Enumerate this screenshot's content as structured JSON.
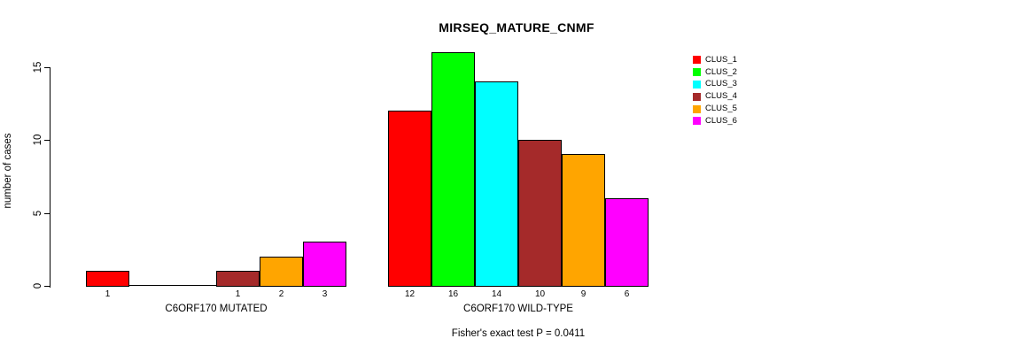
{
  "chart_data": {
    "type": "bar",
    "title": "MIRSEQ_MATURE_CNMF",
    "ylabel": "number of cases",
    "ylim": [
      0,
      16
    ],
    "yticks": [
      0,
      5,
      10,
      15
    ],
    "grid": false,
    "legend_position": "top-right",
    "series_names": [
      "CLUS_1",
      "CLUS_2",
      "CLUS_3",
      "CLUS_4",
      "CLUS_5",
      "CLUS_6"
    ],
    "series_colors": [
      "#ff0000",
      "#00ff00",
      "#00ffff",
      "#a52a2a",
      "#ffa500",
      "#ff00ff"
    ],
    "groups": [
      {
        "label": "C6ORF170 MUTATED",
        "values": [
          1,
          0,
          0,
          1,
          2,
          3
        ]
      },
      {
        "label": "C6ORF170 WILD-TYPE",
        "values": [
          12,
          16,
          14,
          10,
          9,
          6
        ]
      }
    ],
    "bar_value_labels": [
      [
        "1",
        "",
        "",
        "1",
        "2",
        "3"
      ],
      [
        "12",
        "16",
        "14",
        "10",
        "9",
        "6"
      ]
    ],
    "annotation": "Fisher's exact test P = 0.0411"
  },
  "legend": {
    "items": [
      {
        "label": "CLUS_1",
        "color": "#ff0000"
      },
      {
        "label": "CLUS_2",
        "color": "#00ff00"
      },
      {
        "label": "CLUS_3",
        "color": "#00ffff"
      },
      {
        "label": "CLUS_4",
        "color": "#a52a2a"
      },
      {
        "label": "CLUS_5",
        "color": "#ffa500"
      },
      {
        "label": "CLUS_6",
        "color": "#ff00ff"
      }
    ]
  }
}
